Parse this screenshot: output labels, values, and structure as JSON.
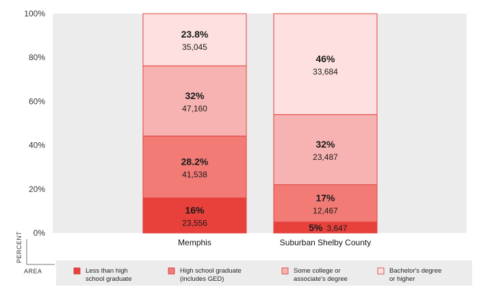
{
  "chart_data": {
    "type": "bar",
    "stacked": true,
    "title": "",
    "xlabel": "AREA",
    "ylabel": "PERCENT",
    "ylim": [
      0,
      100
    ],
    "yticks": [
      "0%",
      "20%",
      "40%",
      "60%",
      "80%",
      "100%"
    ],
    "ytick_values": [
      0,
      20,
      40,
      60,
      80,
      100
    ],
    "categories": [
      "Memphis",
      "Suburban Shelby County"
    ],
    "series": [
      {
        "name": "Less than high school graduate",
        "color": "#e8413c",
        "values": [
          16,
          5
        ],
        "value_labels": [
          "16%",
          "5%"
        ],
        "counts": [
          "23,556",
          "3,647"
        ]
      },
      {
        "name": "High school graduate (includes GED)",
        "color": "#f27b76",
        "values": [
          28.2,
          17
        ],
        "value_labels": [
          "28.2%",
          "17%"
        ],
        "counts": [
          "41,538",
          "12,467"
        ]
      },
      {
        "name": "Some college or associate's degree",
        "color": "#f7b3b1",
        "values": [
          32,
          32
        ],
        "value_labels": [
          "32%",
          "32%"
        ],
        "counts": [
          "47,160",
          "23,487"
        ]
      },
      {
        "name": "Bachelor's degree or higher",
        "color": "#fde0df",
        "values": [
          23.8,
          46
        ],
        "value_labels": [
          "23.8%",
          "46%"
        ],
        "counts": [
          "35,045",
          "33,684"
        ]
      }
    ],
    "legend": {
      "position": "bottom",
      "entries": [
        {
          "line1": "Less than high",
          "line2": "school graduate",
          "color": "#e8413c"
        },
        {
          "line1": "High school graduate",
          "line2": "(includes GED)",
          "color": "#f27b76"
        },
        {
          "line1": "Some college or",
          "line2": "associate's degree",
          "color": "#f7b3b1"
        },
        {
          "line1": "Bachelor's degree",
          "line2": "or higher",
          "color": "#fde0df"
        }
      ]
    },
    "plot_background": "#ececec"
  }
}
